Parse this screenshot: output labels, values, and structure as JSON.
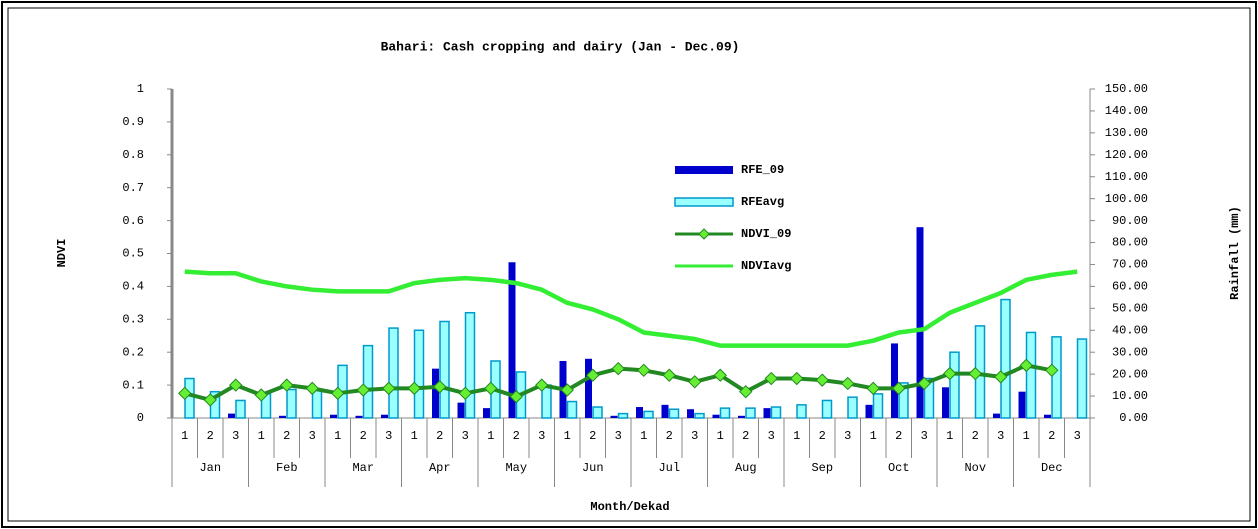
{
  "chart_data": {
    "type": "bar-line",
    "title": "Bahari: Cash cropping and dairy (Jan - Dec.09)",
    "x_label": "Month/Dekad",
    "y_label": "NDVI",
    "y2_label": "Rainfall (mm)",
    "categories": [
      "1",
      "2",
      "3",
      "1",
      "2",
      "3",
      "1",
      "2",
      "3",
      "1",
      "2",
      "3",
      "1",
      "2",
      "3",
      "1",
      "2",
      "3",
      "1",
      "2",
      "3",
      "1",
      "2",
      "3",
      "1",
      "2",
      "3",
      "1",
      "2",
      "3",
      "1",
      "2",
      "3",
      "1",
      "2",
      "3"
    ],
    "months": [
      "Jan",
      "Feb",
      "Mar",
      "Apr",
      "May",
      "Jun",
      "Jul",
      "Aug",
      "Sep",
      "Oct",
      "Nov",
      "Dec"
    ],
    "series": [
      {
        "name": "RFE_09",
        "kind": "bar",
        "axis": "y2",
        "color": "#0000cc",
        "values": [
          0,
          0,
          2,
          0,
          1,
          0,
          1.5,
          1,
          1.5,
          0,
          22.5,
          7,
          4.5,
          71,
          0,
          26,
          27,
          1,
          5,
          6,
          4,
          1.5,
          1,
          4.5,
          0,
          0,
          0,
          6,
          34,
          87,
          14,
          0,
          2,
          12,
          1.5,
          0
        ]
      },
      {
        "name": "RFEavg",
        "kind": "bar",
        "axis": "y2",
        "color": "#99ffff",
        "edge": "#0099cc",
        "values": [
          18,
          12,
          8,
          11,
          13,
          13,
          24,
          33,
          41,
          40,
          44,
          48,
          26,
          21,
          15,
          7.5,
          5,
          2,
          3,
          4,
          2,
          4.5,
          4.5,
          5,
          6,
          8,
          9.5,
          11,
          16,
          18,
          30,
          42,
          54,
          39,
          37,
          36
        ]
      },
      {
        "name": "NDVI_09",
        "kind": "line",
        "marker": true,
        "color": "#228822",
        "values": [
          0.075,
          0.055,
          0.1,
          0.07,
          0.1,
          0.09,
          0.075,
          0.085,
          0.09,
          0.09,
          0.095,
          0.075,
          0.09,
          0.065,
          0.1,
          0.085,
          0.13,
          0.15,
          0.145,
          0.13,
          0.11,
          0.13,
          0.08,
          0.12,
          0.12,
          0.115,
          0.105,
          0.09,
          0.09,
          0.105,
          0.135,
          0.135,
          0.125,
          0.16,
          0.145,
          null
        ]
      },
      {
        "name": "NDVIavg",
        "kind": "line",
        "marker": false,
        "color": "#33ee33",
        "values": [
          0.445,
          0.44,
          0.44,
          0.415,
          0.4,
          0.39,
          0.385,
          0.385,
          0.385,
          0.41,
          0.42,
          0.425,
          0.42,
          0.41,
          0.39,
          0.35,
          0.33,
          0.3,
          0.26,
          0.25,
          0.24,
          0.22,
          0.22,
          0.22,
          0.22,
          0.22,
          0.22,
          0.235,
          0.26,
          0.27,
          0.32,
          0.35,
          0.38,
          0.42,
          0.435,
          0.445
        ]
      }
    ],
    "ylim": [
      0,
      1
    ],
    "yticks": [
      0,
      0.1,
      0.2,
      0.3,
      0.4,
      0.5,
      0.6,
      0.7,
      0.8,
      0.9,
      1
    ],
    "y2lim": [
      0,
      150
    ],
    "y2ticks": [
      {
        "value": 0,
        "label": "0.00"
      },
      {
        "value": 10,
        "label": "10.00"
      },
      {
        "value": 20,
        "label": "20.00"
      },
      {
        "value": 30,
        "label": "30.00"
      },
      {
        "value": 40,
        "label": "40.00"
      },
      {
        "value": 50,
        "label": "50.00"
      },
      {
        "value": 60,
        "label": "60.00"
      },
      {
        "value": 70,
        "label": "70.00"
      },
      {
        "value": 80,
        "label": "80.00"
      },
      {
        "value": 90,
        "label": "90.00"
      },
      {
        "value": 100,
        "label": "100.00"
      },
      {
        "value": 110,
        "label": "110.00"
      },
      {
        "value": 120,
        "label": "120.00"
      },
      {
        "value": 130,
        "label": "130.00"
      },
      {
        "value": 140,
        "label": "140.00"
      },
      {
        "value": 150,
        "label": "150.00"
      }
    ],
    "grid": false
  }
}
